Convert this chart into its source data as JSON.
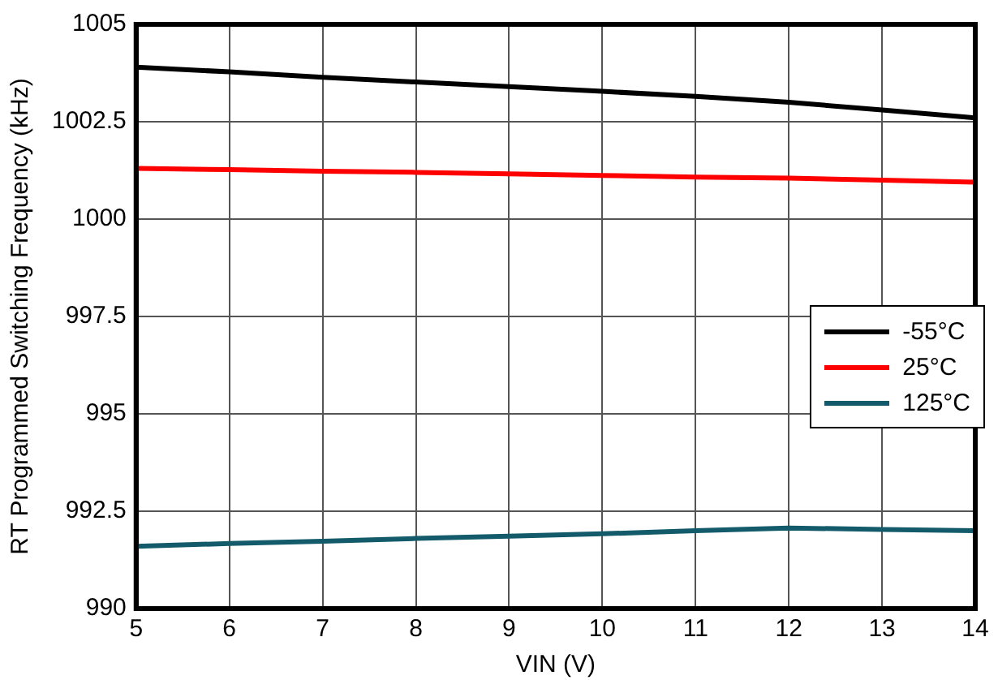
{
  "chart_data": {
    "type": "line",
    "xlabel": "VIN (V)",
    "ylabel": "RT Programmed Switching Frequency (kHz)",
    "x": [
      5,
      6,
      7,
      8,
      9,
      10,
      11,
      12,
      13,
      14
    ],
    "series": [
      {
        "name": "-55°C",
        "color": "#000000",
        "values": [
          1003.9,
          1003.78,
          1003.64,
          1003.52,
          1003.4,
          1003.28,
          1003.15,
          1003.0,
          1002.8,
          1002.6
        ]
      },
      {
        "name": "25°C",
        "color": "#ff0000",
        "values": [
          1001.3,
          1001.27,
          1001.23,
          1001.2,
          1001.16,
          1001.12,
          1001.08,
          1001.05,
          1001.0,
          1000.95
        ]
      },
      {
        "name": "125°C",
        "color": "#135b6b",
        "values": [
          991.6,
          991.67,
          991.73,
          991.8,
          991.86,
          991.92,
          992.0,
          992.07,
          992.03,
          992.0
        ]
      }
    ],
    "xlim": [
      5,
      14
    ],
    "xticks": [
      5,
      6,
      7,
      8,
      9,
      10,
      11,
      12,
      13,
      14
    ],
    "ylim": [
      990,
      1005
    ],
    "yticks": [
      990,
      992.5,
      995,
      997.5,
      1000,
      1002.5,
      1005
    ],
    "grid": true,
    "legend": "right",
    "marker": "none",
    "line_style": "solid"
  }
}
